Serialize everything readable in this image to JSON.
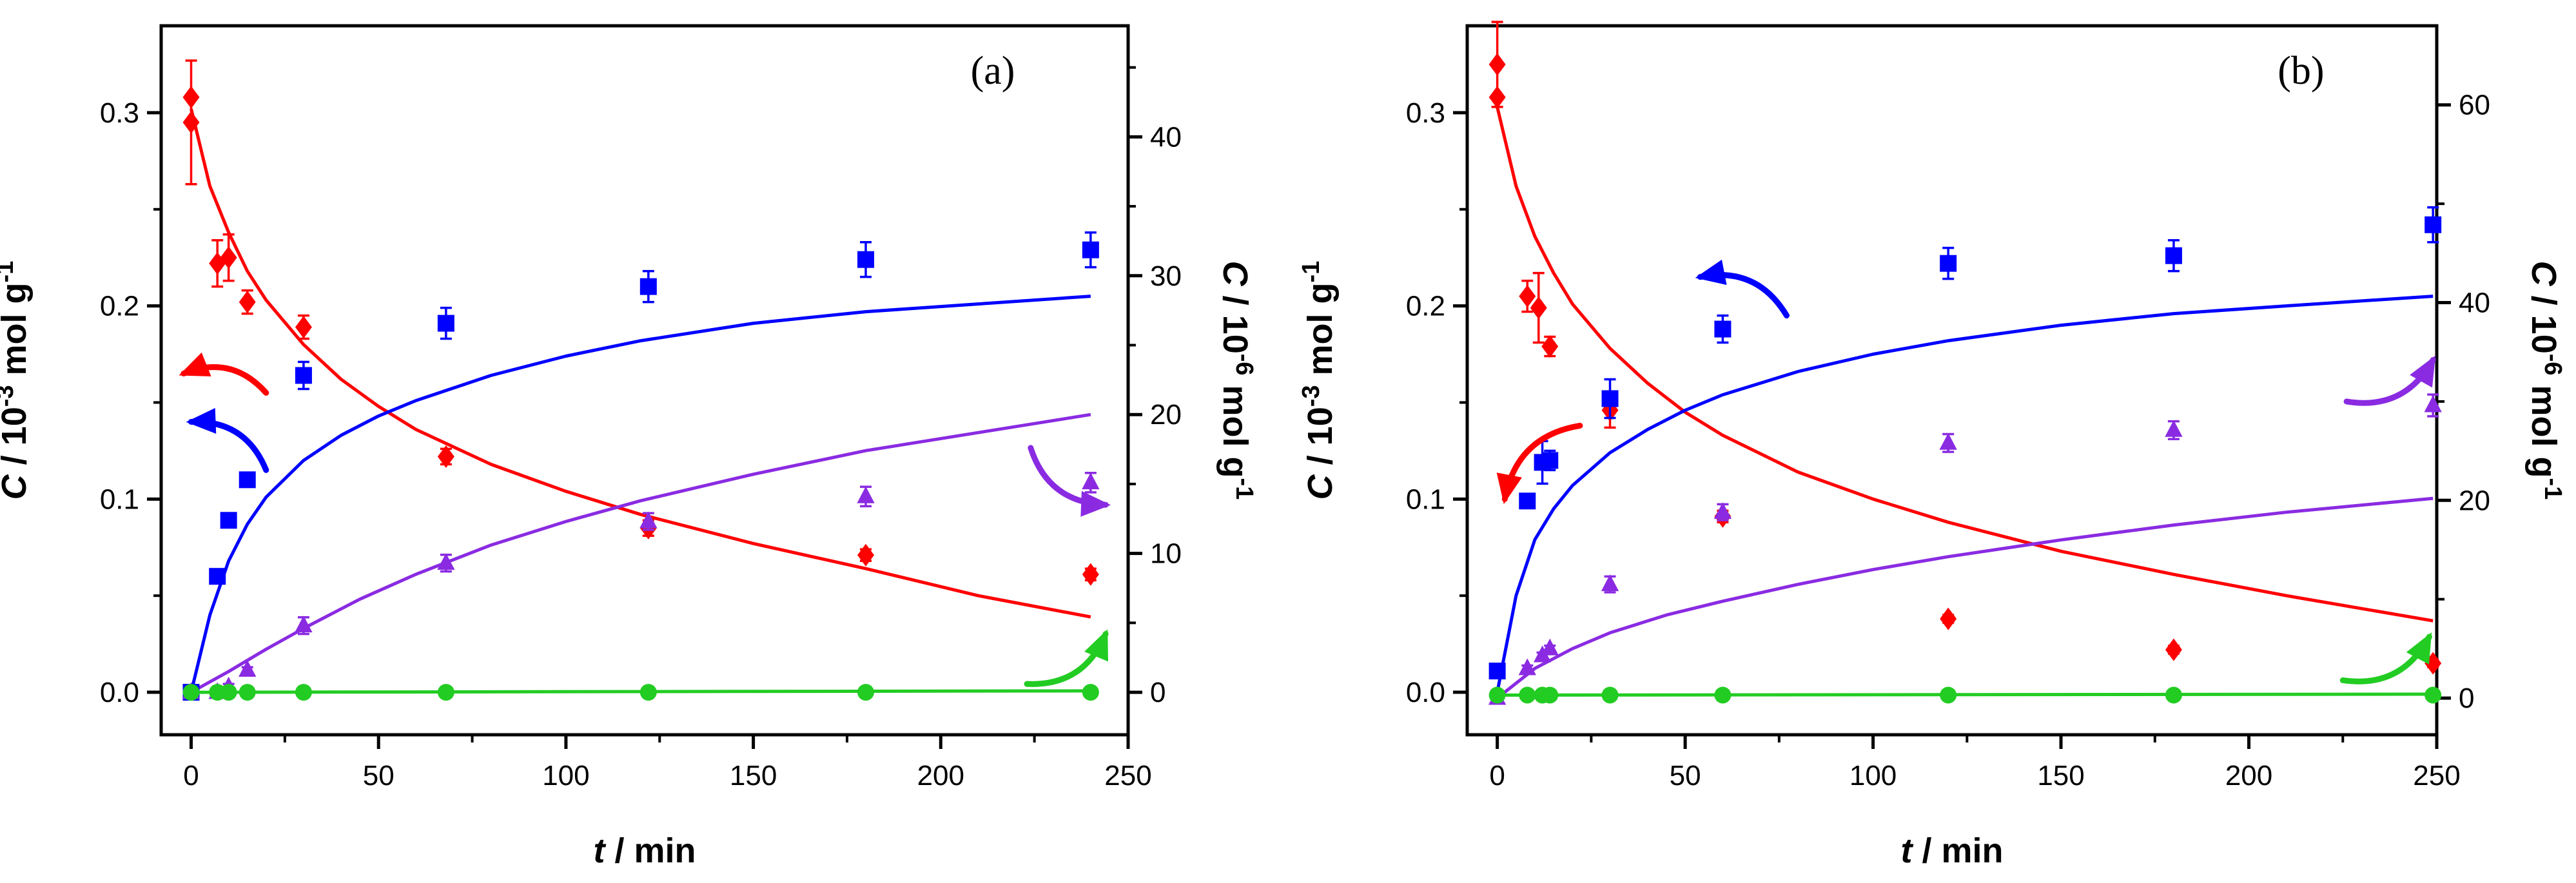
{
  "chart_data": [
    {
      "type": "scatter",
      "panel_label": "(a)",
      "xlabel": "t / min",
      "xlabel_var": "t",
      "xlabel_unit": " / min",
      "ylabel_left": "C / 10-3 mol g-1",
      "ylabel_left_parts": [
        "C",
        " / 10",
        "-3",
        " mol g",
        "-1"
      ],
      "ylabel_right": "C / 10-6 mol g-1",
      "ylabel_right_parts": [
        "C",
        " / 10",
        "-6",
        " mol g",
        "-1"
      ],
      "xlim": [
        -8,
        250
      ],
      "ylim_left": [
        -0.022,
        0.345
      ],
      "ylim_right": [
        -3.06,
        48.0
      ],
      "xticks": [
        0,
        50,
        100,
        150,
        200,
        250
      ],
      "yticks_left": [
        0.0,
        0.1,
        0.2,
        0.3
      ],
      "yticks_right": [
        0,
        10,
        20,
        30,
        40
      ],
      "xtick_labels": [
        "0",
        "50",
        "100",
        "150",
        "200",
        "250"
      ],
      "ytick_labels_left": [
        "0.0",
        "0.1",
        "0.2",
        "0.3"
      ],
      "ytick_labels_right": [
        "0",
        "10",
        "20",
        "30",
        "40"
      ],
      "series": [
        {
          "name": "red",
          "color": "#ff0000",
          "marker": "diamond",
          "axis": "left",
          "x": [
            0,
            0,
            7,
            10,
            15,
            30,
            68,
            122,
            180,
            240
          ],
          "y": [
            0.308,
            0.295,
            0.222,
            0.225,
            0.202,
            0.189,
            0.122,
            0.085,
            0.071,
            0.061
          ],
          "err": [
            0.0,
            0.032,
            0.012,
            0.012,
            0.006,
            0.006,
            0.004,
            0.004,
            0.003,
            0.003
          ]
        },
        {
          "name": "blue",
          "color": "#0000ff",
          "marker": "square",
          "axis": "left",
          "x": [
            0,
            7,
            10,
            15,
            30,
            68,
            122,
            180,
            240
          ],
          "y": [
            0.0,
            0.06,
            0.089,
            0.11,
            0.164,
            0.191,
            0.21,
            0.224,
            0.229
          ],
          "err": [
            0.0,
            0.003,
            0.003,
            0.003,
            0.007,
            0.008,
            0.008,
            0.009,
            0.009
          ]
        },
        {
          "name": "purple",
          "color": "#8a2be2",
          "marker": "triangle",
          "axis": "right",
          "x": [
            0,
            7,
            10,
            15,
            30,
            68,
            122,
            180,
            240
          ],
          "y": [
            0.0,
            0.0,
            0.4,
            1.6,
            4.8,
            9.3,
            12.3,
            14.1,
            15.1
          ],
          "err": [
            0.0,
            0.0,
            0.2,
            0.2,
            0.6,
            0.6,
            0.6,
            0.7,
            0.7
          ]
        },
        {
          "name": "green",
          "color": "#22cc22",
          "marker": "circle",
          "axis": "right",
          "x": [
            0,
            7,
            10,
            15,
            30,
            68,
            122,
            180,
            240
          ],
          "y": [
            0.0,
            0.0,
            0.0,
            0.0,
            0.0,
            0.0,
            0.0,
            0.0,
            0.0
          ],
          "err": [
            0,
            0,
            0,
            0,
            0,
            0,
            0,
            0,
            0
          ]
        }
      ],
      "fits": [
        {
          "name": "red-fit",
          "color": "#ff0000",
          "axis": "left",
          "x": [
            0,
            5,
            10,
            15,
            20,
            30,
            40,
            50,
            60,
            80,
            100,
            120,
            150,
            180,
            210,
            240
          ],
          "y": [
            0.302,
            0.262,
            0.238,
            0.218,
            0.203,
            0.18,
            0.162,
            0.148,
            0.136,
            0.118,
            0.104,
            0.092,
            0.077,
            0.064,
            0.05,
            0.039
          ]
        },
        {
          "name": "blue-fit",
          "color": "#0000ff",
          "axis": "left",
          "x": [
            0,
            5,
            10,
            15,
            20,
            30,
            40,
            50,
            60,
            80,
            100,
            120,
            150,
            180,
            210,
            240
          ],
          "y": [
            0.0,
            0.04,
            0.068,
            0.087,
            0.101,
            0.12,
            0.133,
            0.143,
            0.151,
            0.164,
            0.174,
            0.182,
            0.191,
            0.197,
            0.201,
            0.205
          ]
        },
        {
          "name": "purple-fit",
          "color": "#8a2be2",
          "axis": "right",
          "x": [
            0,
            10,
            20,
            30,
            45,
            60,
            80,
            100,
            120,
            150,
            180,
            210,
            240
          ],
          "y": [
            0.0,
            1.5,
            3.1,
            4.6,
            6.7,
            8.5,
            10.6,
            12.3,
            13.8,
            15.7,
            17.4,
            18.7,
            20.0
          ]
        },
        {
          "name": "green-fit",
          "color": "#22cc22",
          "axis": "right",
          "x": [
            0,
            240
          ],
          "y": [
            0.0,
            0.1
          ]
        }
      ],
      "arrows": [
        {
          "color": "#ff0000",
          "axis": "left",
          "from": [
            20,
            0.155
          ],
          "to": [
            -2,
            0.165
          ]
        },
        {
          "color": "#0000ff",
          "axis": "left",
          "from": [
            20,
            0.115
          ],
          "to": [
            0,
            0.14
          ]
        },
        {
          "color": "#8a2be2",
          "axis": "right",
          "from": [
            224,
            17.6
          ],
          "to": [
            244,
            13.5
          ]
        },
        {
          "color": "#22cc22",
          "axis": "right",
          "from": [
            223,
            0.6
          ],
          "to": [
            244,
            4.2
          ]
        }
      ]
    },
    {
      "type": "scatter",
      "panel_label": "(b)",
      "xlabel": "t / min",
      "xlabel_var": "t",
      "xlabel_unit": " / min",
      "ylabel_left": "C / 10-3 mol g-1",
      "ylabel_left_parts": [
        "C",
        " / 10",
        "-3",
        " mol g",
        "-1"
      ],
      "ylabel_right": "C / 10-6 mol g-1",
      "ylabel_right_parts": [
        "C",
        " / 10",
        "-6",
        " mol g",
        "-1"
      ],
      "xlim": [
        -8,
        250
      ],
      "ylim_left": [
        -0.022,
        0.345
      ],
      "ylim_right": [
        -3.71,
        68.0
      ],
      "xticks": [
        0,
        50,
        100,
        150,
        200,
        250
      ],
      "yticks_left": [
        0.0,
        0.1,
        0.2,
        0.3
      ],
      "yticks_right": [
        0,
        20,
        40,
        60
      ],
      "xtick_labels": [
        "0",
        "50",
        "100",
        "150",
        "200",
        "250"
      ],
      "ytick_labels_left": [
        "0.0",
        "0.1",
        "0.2",
        "0.3"
      ],
      "ytick_labels_right": [
        "0",
        "20",
        "40",
        "60"
      ],
      "series": [
        {
          "name": "red",
          "color": "#ff0000",
          "marker": "diamond",
          "axis": "left",
          "x": [
            0,
            0,
            8,
            11,
            14,
            30,
            60,
            120,
            180,
            249
          ],
          "y": [
            0.325,
            0.308,
            0.205,
            0.199,
            0.179,
            0.146,
            0.091,
            0.038,
            0.022,
            0.015
          ],
          "err": [
            0.022,
            0.0,
            0.008,
            0.018,
            0.005,
            0.009,
            0.003,
            0.002,
            0.002,
            0.002
          ]
        },
        {
          "name": "blue",
          "color": "#0000ff",
          "marker": "square",
          "axis": "left",
          "x": [
            0,
            8,
            12,
            14,
            30,
            60,
            120,
            180,
            249
          ],
          "y": [
            0.011,
            0.099,
            0.119,
            0.12,
            0.152,
            0.188,
            0.222,
            0.226,
            0.242
          ],
          "err": [
            0.002,
            0.003,
            0.011,
            0.005,
            0.01,
            0.007,
            0.008,
            0.008,
            0.009
          ]
        },
        {
          "name": "purple",
          "color": "#8a2be2",
          "marker": "triangle",
          "axis": "right",
          "x": [
            0,
            8,
            12,
            14,
            30,
            60,
            120,
            180,
            249
          ],
          "y": [
            0.0,
            3.0,
            4.3,
            5.0,
            11.5,
            18.8,
            25.8,
            27.1,
            29.6
          ],
          "err": [
            0.0,
            0.3,
            0.3,
            0.3,
            0.8,
            0.8,
            0.9,
            0.9,
            1.1
          ]
        },
        {
          "name": "green",
          "color": "#22cc22",
          "marker": "circle",
          "axis": "right",
          "x": [
            0,
            8,
            12,
            14,
            30,
            60,
            120,
            180,
            249
          ],
          "y": [
            0.3,
            0.3,
            0.3,
            0.3,
            0.3,
            0.3,
            0.3,
            0.3,
            0.3
          ],
          "err": [
            0,
            0,
            0,
            0,
            0,
            0,
            0,
            0,
            0
          ]
        }
      ],
      "fits": [
        {
          "name": "red-fit",
          "color": "#ff0000",
          "axis": "left",
          "x": [
            0,
            5,
            10,
            15,
            20,
            30,
            40,
            50,
            60,
            80,
            100,
            120,
            150,
            180,
            210,
            249
          ],
          "y": [
            0.303,
            0.262,
            0.236,
            0.217,
            0.201,
            0.178,
            0.16,
            0.145,
            0.133,
            0.114,
            0.1,
            0.088,
            0.073,
            0.061,
            0.05,
            0.037
          ]
        },
        {
          "name": "blue-fit",
          "color": "#0000ff",
          "axis": "left",
          "x": [
            0,
            5,
            10,
            15,
            20,
            30,
            40,
            50,
            60,
            80,
            100,
            120,
            150,
            180,
            210,
            249
          ],
          "y": [
            0.0,
            0.05,
            0.079,
            0.095,
            0.107,
            0.124,
            0.136,
            0.146,
            0.154,
            0.166,
            0.175,
            0.182,
            0.19,
            0.196,
            0.2,
            0.205
          ]
        },
        {
          "name": "purple-fit",
          "color": "#8a2be2",
          "axis": "right",
          "x": [
            0,
            10,
            20,
            30,
            45,
            60,
            80,
            100,
            120,
            150,
            180,
            210,
            249
          ],
          "y": [
            0.0,
            3.0,
            5.0,
            6.6,
            8.4,
            9.8,
            11.5,
            13.0,
            14.3,
            16.0,
            17.5,
            18.8,
            20.2
          ]
        },
        {
          "name": "green-fit",
          "color": "#22cc22",
          "axis": "right",
          "x": [
            0,
            249
          ],
          "y": [
            0.3,
            0.4
          ]
        }
      ],
      "arrows": [
        {
          "color": "#ff0000",
          "axis": "left",
          "from": [
            22,
            0.138
          ],
          "to": [
            2,
            0.1
          ]
        },
        {
          "color": "#0000ff",
          "axis": "left",
          "from": [
            77,
            0.195
          ],
          "to": [
            54,
            0.215
          ]
        },
        {
          "color": "#8a2be2",
          "axis": "right",
          "from": [
            226,
            30.0
          ],
          "to": [
            249,
            34.2
          ]
        },
        {
          "color": "#22cc22",
          "axis": "right",
          "from": [
            225,
            1.8
          ],
          "to": [
            248,
            6.2
          ]
        }
      ]
    }
  ]
}
